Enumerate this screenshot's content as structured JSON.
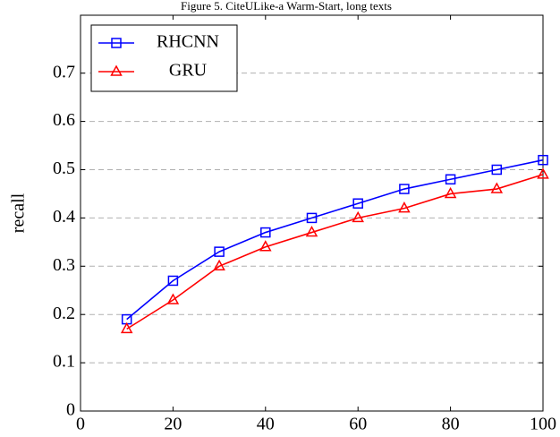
{
  "chart_data": {
    "type": "line",
    "title": "Figure 5.  CiteULike-a Warm-Start, long texts",
    "y_label": "recall",
    "x": [
      10,
      20,
      30,
      40,
      50,
      60,
      70,
      80,
      90,
      100
    ],
    "series": [
      {
        "name": "RHCNN",
        "color": "#0000ff",
        "marker": "square",
        "values": [
          0.19,
          0.27,
          0.33,
          0.37,
          0.4,
          0.43,
          0.46,
          0.48,
          0.5,
          0.52
        ]
      },
      {
        "name": "GRU",
        "color": "#ff0000",
        "marker": "triangle",
        "values": [
          0.17,
          0.23,
          0.3,
          0.34,
          0.37,
          0.4,
          0.42,
          0.45,
          0.46,
          0.49
        ]
      }
    ],
    "xlim": [
      0,
      100
    ],
    "xticks": [
      0,
      20,
      40,
      60,
      80,
      100
    ],
    "ylim": [
      0,
      0.82
    ],
    "yticks": [
      0,
      0.1,
      0.2,
      0.3,
      0.4,
      0.5,
      0.6,
      0.7
    ],
    "grid": true,
    "legend": "upper left"
  }
}
